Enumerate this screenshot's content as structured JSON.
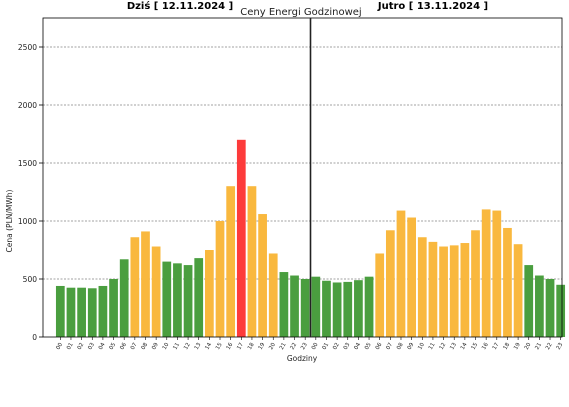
{
  "chart_data": {
    "type": "bar",
    "title": "Ceny Energi Godzinowej",
    "left_header": "Dziś [ 12.11.2024 ]",
    "right_header": "Jutro [ 13.11.2024 ]",
    "xlabel": "Godziny",
    "ylabel": "Cena (PLN/MWh)",
    "ylim": [
      0,
      2750
    ],
    "yticks": [
      0,
      500,
      1000,
      1500,
      2000,
      2500
    ],
    "grid": "horizontal dashed",
    "divider_after_index": 23,
    "categories": [
      "00",
      "01",
      "02",
      "03",
      "04",
      "05",
      "06",
      "07",
      "08",
      "09",
      "10",
      "11",
      "12",
      "13",
      "14",
      "15",
      "16",
      "17",
      "18",
      "19",
      "20",
      "21",
      "22",
      "23",
      "00",
      "01",
      "02",
      "03",
      "04",
      "05",
      "06",
      "07",
      "08",
      "09",
      "10",
      "11",
      "12",
      "13",
      "14",
      "15",
      "16",
      "17",
      "18",
      "19",
      "20",
      "21",
      "22",
      "23"
    ],
    "values": [
      440,
      425,
      425,
      420,
      440,
      500,
      670,
      860,
      910,
      780,
      650,
      635,
      620,
      680,
      750,
      1000,
      1300,
      1700,
      1300,
      1060,
      720,
      560,
      530,
      500,
      520,
      485,
      470,
      475,
      490,
      520,
      720,
      920,
      1090,
      1030,
      860,
      820,
      780,
      790,
      810,
      920,
      1100,
      1090,
      940,
      800,
      620,
      530,
      500,
      450
    ],
    "bar_colors": [
      "#4a9e3f",
      "#f9b83e",
      "#fd3b3b"
    ],
    "color_levels": [
      "green",
      "green",
      "green",
      "green",
      "green",
      "green",
      "green",
      "orange",
      "orange",
      "orange",
      "green",
      "green",
      "green",
      "green",
      "orange",
      "orange",
      "orange",
      "red",
      "orange",
      "orange",
      "orange",
      "green",
      "green",
      "green",
      "green",
      "green",
      "green",
      "green",
      "green",
      "green",
      "orange",
      "orange",
      "orange",
      "orange",
      "orange",
      "orange",
      "orange",
      "orange",
      "orange",
      "orange",
      "orange",
      "orange",
      "orange",
      "orange",
      "green",
      "green",
      "green",
      "green"
    ]
  }
}
